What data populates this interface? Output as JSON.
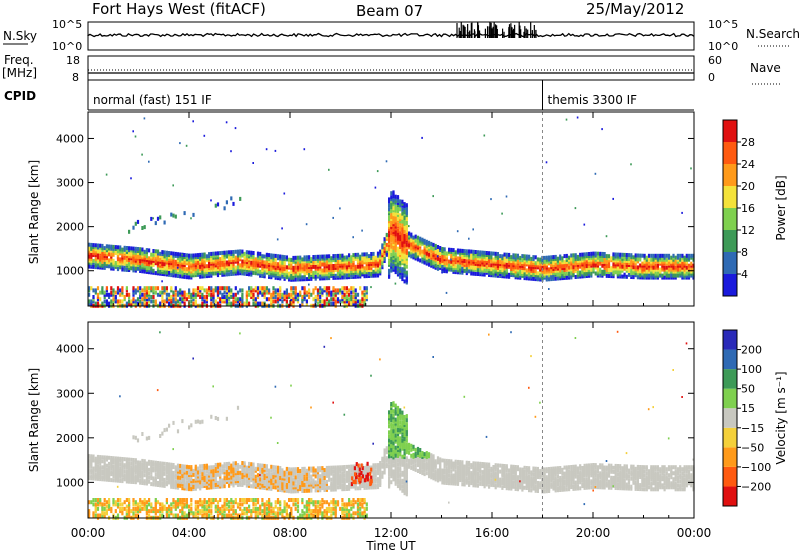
{
  "header": {
    "site": "Fort Hays West (fitACF)",
    "beam": "Beam 07",
    "date": "25/May/2012"
  },
  "summary_panels": {
    "nsky": {
      "label": "N.Sky",
      "ticks": [
        "10^5",
        "10^0"
      ]
    },
    "nsearch": {
      "label": "N.Search",
      "ticks": [
        "10^5",
        "10^0"
      ]
    },
    "freq": {
      "label_line1": "Freq.",
      "label_line2": "[MHz]",
      "ticks": [
        "18",
        "8"
      ]
    },
    "nave": {
      "label": "Nave",
      "ticks": [
        "60",
        "0"
      ]
    },
    "cpid": {
      "label": "CPID",
      "segments": [
        {
          "text": "normal (fast) 151 IF",
          "start_hour": 0
        },
        {
          "text": "themis 3300 IF",
          "start_hour": 18
        }
      ]
    }
  },
  "x_axis": {
    "label": "Time UT",
    "ticks": [
      "00:00",
      "04:00",
      "08:00",
      "12:00",
      "16:00",
      "20:00",
      "00:00"
    ]
  },
  "chart_data": [
    {
      "type": "heatmap",
      "parameter": "Power",
      "ylabel": "Slant Range [km]",
      "xlabel": "Time UT",
      "xlim_hours": [
        0,
        24
      ],
      "ylim": [
        200,
        4600
      ],
      "yticks": [
        1000,
        2000,
        3000,
        4000
      ],
      "colorbar": {
        "label": "Power [dB]",
        "ticks": [
          "4",
          "8",
          "12",
          "16",
          "20",
          "24",
          "28"
        ],
        "colors": [
          "#1a1adc",
          "#2f6ab4",
          "#3d9a57",
          "#7fd04f",
          "#f4e23a",
          "#ff9a1a",
          "#ff5a10",
          "#e01010"
        ]
      },
      "main_echo_band_km": [
        [
          0,
          1400
        ],
        [
          2,
          1300
        ],
        [
          4,
          1150
        ],
        [
          6,
          1250
        ],
        [
          8,
          1100
        ],
        [
          10,
          1150
        ],
        [
          11.5,
          1200
        ],
        [
          12,
          2000
        ],
        [
          12.5,
          1700
        ],
        [
          14,
          1300
        ],
        [
          16,
          1200
        ],
        [
          18,
          1100
        ],
        [
          20,
          1200
        ],
        [
          22,
          1150
        ],
        [
          24,
          1150
        ]
      ]
    },
    {
      "type": "heatmap",
      "parameter": "Velocity",
      "ylabel": "Slant Range [km]",
      "xlabel": "Time UT",
      "xlim_hours": [
        0,
        24
      ],
      "ylim": [
        200,
        4600
      ],
      "yticks": [
        1000,
        2000,
        3000,
        4000
      ],
      "colorbar": {
        "label": "Velocity [m s⁻¹]",
        "ticks": [
          "200",
          "100",
          "50",
          "15",
          "−15",
          "−50",
          "−100",
          "−200"
        ],
        "colors": [
          "#2a2ab8",
          "#2f6ab4",
          "#3d9a57",
          "#7fd04f",
          "#c8c8c0",
          "#f4d03a",
          "#ff9a1a",
          "#ff5a10",
          "#e01010"
        ]
      }
    }
  ]
}
